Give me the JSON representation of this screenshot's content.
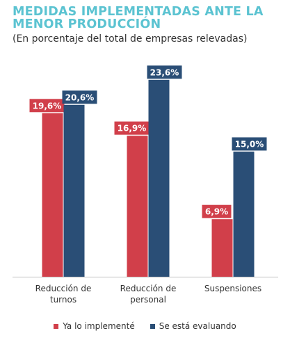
{
  "chart_data": {
    "type": "bar",
    "title": "MEDIDAS IMPLEMENTADAS ANTE LA MENOR PRODUCCIÓN",
    "subtitle": "(En porcentaje del total de empresas relevadas)",
    "categories": [
      "Reducción de turnos",
      "Reducción de personal",
      "Suspensiones"
    ],
    "category_lines": [
      [
        "Reducción de",
        "turnos"
      ],
      [
        "Reducción de",
        "personal"
      ],
      [
        "Suspensiones"
      ]
    ],
    "series": [
      {
        "name": "Ya lo implementé",
        "values": [
          19.6,
          16.9,
          6.9
        ],
        "labels": [
          "19,6%",
          "16,9%",
          "6,9%"
        ],
        "color": "#d13f4a"
      },
      {
        "name": "Se está evaluando",
        "values": [
          20.6,
          23.6,
          15.0
        ],
        "labels": [
          "20,6%",
          "23,6%",
          "15,0%"
        ],
        "color": "#2a4e76"
      }
    ],
    "ylim": [
      0,
      25
    ],
    "grid": false,
    "legend_position": "bottom"
  },
  "colors": {
    "title": "#5bc3d1",
    "baseline": "#bfbfbf",
    "label_text": "#ffffff"
  }
}
